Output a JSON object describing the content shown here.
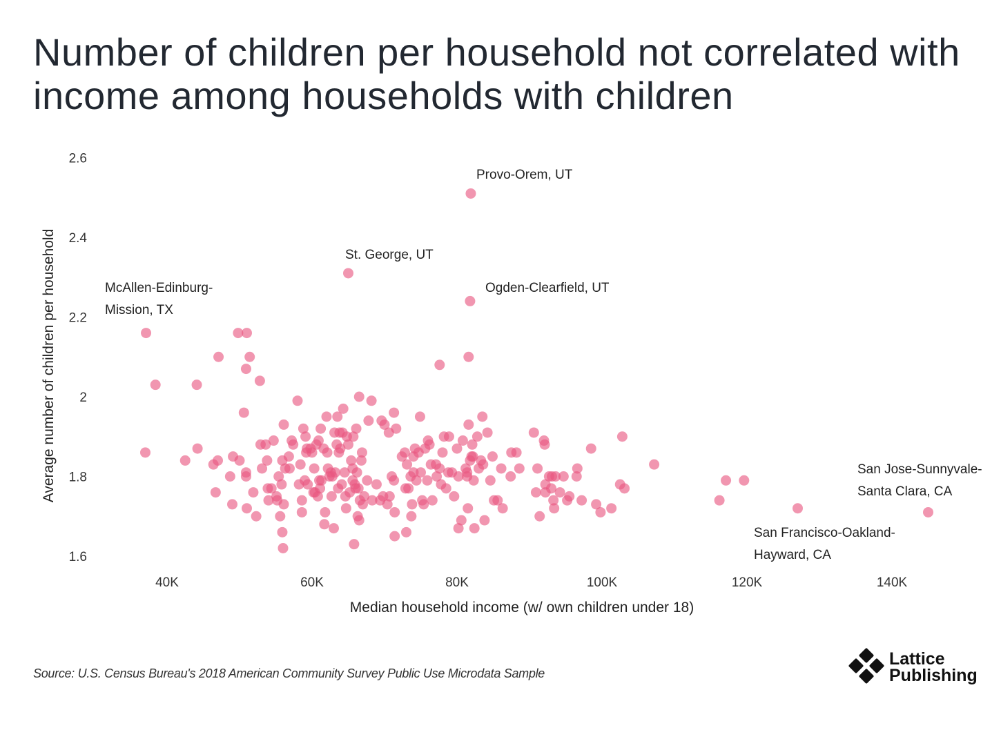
{
  "title": "Number of children per household not correlated with income among households with children",
  "source": "Source: U.S. Census Bureau's 2018 American Community Survey Public Use Microdata Sample",
  "logo": {
    "line1": "Lattice",
    "line2": "Publishing"
  },
  "colors": {
    "point": "#e8557f",
    "text": "#222831"
  },
  "chart_data": {
    "type": "scatter",
    "title": "Number of children per household not correlated with income among households with children",
    "xlabel": "Median household income (w/ own children under 18)",
    "ylabel": "Average number of children per household",
    "xlim": [
      31,
      154
    ],
    "ylim": [
      1.58,
      2.62
    ],
    "xticks": [
      40,
      60,
      80,
      100,
      120,
      140
    ],
    "xtick_labels": [
      "40K",
      "60K",
      "80K",
      "100K",
      "120K",
      "140K"
    ],
    "yticks": [
      1.6,
      1.8,
      2.0,
      2.2,
      2.4,
      2.6
    ],
    "ytick_labels": [
      "1.6",
      "1.8",
      "2",
      "2.2",
      "2.4",
      "2.6"
    ],
    "grid": false,
    "annotations": [
      {
        "label": [
          "Provo-Orem, UT"
        ],
        "x": 81.9,
        "y": 2.51
      },
      {
        "label": [
          "St. George, UT"
        ],
        "x": 65.0,
        "y": 2.31
      },
      {
        "label": [
          "Ogden-Clearfield, UT"
        ],
        "x": 81.8,
        "y": 2.24
      },
      {
        "label": [
          "McAllen-Edinburg-",
          "Mission, TX"
        ],
        "x": 37.1,
        "y": 2.16
      },
      {
        "label": [
          "San Jose-Sunnyvale-",
          "Santa Clara, CA"
        ],
        "x": 145.0,
        "y": 1.71
      },
      {
        "label": [
          "San Francisco-Oakland-",
          "Hayward, CA"
        ],
        "x": 127.0,
        "y": 1.72
      }
    ],
    "points": [
      [
        81.9,
        2.51
      ],
      [
        65.0,
        2.31
      ],
      [
        81.8,
        2.24
      ],
      [
        37.1,
        2.16
      ],
      [
        145.0,
        1.71
      ],
      [
        127.0,
        1.72
      ],
      [
        37.0,
        1.86
      ],
      [
        38.4,
        2.03
      ],
      [
        44.1,
        2.03
      ],
      [
        42.5,
        1.84
      ],
      [
        44.2,
        1.87
      ],
      [
        47.1,
        2.1
      ],
      [
        49.8,
        2.16
      ],
      [
        51.0,
        2.16
      ],
      [
        51.4,
        2.1
      ],
      [
        50.9,
        2.07
      ],
      [
        52.8,
        2.04
      ],
      [
        50.6,
        1.96
      ],
      [
        46.4,
        1.83
      ],
      [
        47.0,
        1.84
      ],
      [
        46.7,
        1.76
      ],
      [
        48.7,
        1.8
      ],
      [
        49.1,
        1.85
      ],
      [
        49.0,
        1.73
      ],
      [
        50.0,
        1.84
      ],
      [
        50.9,
        1.81
      ],
      [
        50.9,
        1.8
      ],
      [
        51.0,
        1.72
      ],
      [
        51.9,
        1.76
      ],
      [
        52.3,
        1.7
      ],
      [
        52.9,
        1.88
      ],
      [
        53.1,
        1.82
      ],
      [
        53.6,
        1.88
      ],
      [
        53.8,
        1.84
      ],
      [
        53.9,
        1.77
      ],
      [
        54.0,
        1.74
      ],
      [
        54.4,
        1.77
      ],
      [
        54.7,
        1.89
      ],
      [
        55.1,
        1.75
      ],
      [
        55.2,
        1.74
      ],
      [
        55.4,
        1.8
      ],
      [
        55.6,
        1.7
      ],
      [
        55.8,
        1.78
      ],
      [
        55.9,
        1.66
      ],
      [
        55.9,
        1.84
      ],
      [
        56.0,
        1.62
      ],
      [
        56.1,
        1.93
      ],
      [
        56.1,
        1.73
      ],
      [
        56.3,
        1.82
      ],
      [
        56.8,
        1.85
      ],
      [
        56.9,
        1.82
      ],
      [
        57.2,
        1.89
      ],
      [
        57.4,
        1.88
      ],
      [
        58.0,
        1.99
      ],
      [
        58.2,
        1.78
      ],
      [
        58.4,
        1.83
      ],
      [
        58.6,
        1.71
      ],
      [
        58.6,
        1.74
      ],
      [
        58.8,
        1.92
      ],
      [
        59.0,
        1.79
      ],
      [
        59.1,
        1.9
      ],
      [
        59.2,
        1.86
      ],
      [
        59.3,
        1.87
      ],
      [
        59.4,
        1.78
      ],
      [
        59.8,
        1.87
      ],
      [
        60.0,
        1.86
      ],
      [
        60.2,
        1.76
      ],
      [
        60.3,
        1.82
      ],
      [
        60.4,
        1.76
      ],
      [
        60.6,
        1.88
      ],
      [
        60.8,
        1.75
      ],
      [
        60.9,
        1.89
      ],
      [
        61.0,
        1.79
      ],
      [
        61.1,
        1.77
      ],
      [
        61.2,
        1.92
      ],
      [
        61.3,
        1.79
      ],
      [
        61.6,
        1.87
      ],
      [
        61.7,
        1.68
      ],
      [
        61.8,
        1.71
      ],
      [
        62.0,
        1.95
      ],
      [
        62.1,
        1.86
      ],
      [
        62.2,
        1.82
      ],
      [
        62.4,
        1.8
      ],
      [
        62.6,
        1.81
      ],
      [
        62.7,
        1.75
      ],
      [
        62.8,
        1.8
      ],
      [
        63.0,
        1.67
      ],
      [
        63.1,
        1.91
      ],
      [
        63.2,
        1.81
      ],
      [
        63.4,
        1.88
      ],
      [
        63.5,
        1.95
      ],
      [
        63.6,
        1.77
      ],
      [
        63.7,
        1.86
      ],
      [
        63.8,
        1.91
      ],
      [
        63.9,
        1.87
      ],
      [
        64.1,
        1.78
      ],
      [
        64.2,
        1.91
      ],
      [
        64.3,
        1.97
      ],
      [
        64.5,
        1.81
      ],
      [
        64.6,
        1.75
      ],
      [
        64.7,
        1.72
      ],
      [
        64.8,
        1.9
      ],
      [
        65.0,
        1.88
      ],
      [
        65.2,
        1.76
      ],
      [
        65.4,
        1.84
      ],
      [
        65.6,
        1.79
      ],
      [
        65.6,
        1.82
      ],
      [
        65.7,
        1.9
      ],
      [
        65.8,
        1.63
      ],
      [
        65.9,
        1.78
      ],
      [
        66.0,
        1.77
      ],
      [
        66.1,
        1.92
      ],
      [
        66.2,
        1.81
      ],
      [
        66.3,
        1.7
      ],
      [
        66.4,
        1.77
      ],
      [
        66.5,
        2.0
      ],
      [
        66.5,
        1.69
      ],
      [
        66.6,
        1.74
      ],
      [
        66.8,
        1.84
      ],
      [
        66.9,
        1.86
      ],
      [
        67.0,
        1.73
      ],
      [
        67.2,
        1.75
      ],
      [
        67.6,
        1.79
      ],
      [
        67.8,
        1.94
      ],
      [
        68.2,
        1.99
      ],
      [
        68.3,
        1.74
      ],
      [
        68.9,
        1.78
      ],
      [
        69.4,
        1.74
      ],
      [
        69.6,
        1.94
      ],
      [
        69.8,
        1.75
      ],
      [
        70.0,
        1.93
      ],
      [
        70.4,
        1.73
      ],
      [
        70.6,
        1.91
      ],
      [
        70.7,
        1.75
      ],
      [
        71.0,
        1.8
      ],
      [
        71.3,
        1.79
      ],
      [
        71.3,
        1.96
      ],
      [
        71.4,
        1.65
      ],
      [
        71.4,
        1.71
      ],
      [
        71.6,
        1.92
      ],
      [
        72.4,
        1.85
      ],
      [
        72.8,
        1.86
      ],
      [
        72.9,
        1.77
      ],
      [
        73.0,
        1.66
      ],
      [
        73.1,
        1.83
      ],
      [
        73.3,
        1.77
      ],
      [
        73.6,
        1.8
      ],
      [
        73.7,
        1.7
      ],
      [
        73.8,
        1.73
      ],
      [
        74.0,
        1.81
      ],
      [
        74.0,
        1.85
      ],
      [
        74.2,
        1.87
      ],
      [
        74.4,
        1.79
      ],
      [
        74.7,
        1.86
      ],
      [
        74.9,
        1.95
      ],
      [
        75.0,
        1.81
      ],
      [
        75.2,
        1.74
      ],
      [
        75.4,
        1.73
      ],
      [
        75.6,
        1.87
      ],
      [
        75.9,
        1.79
      ],
      [
        76.0,
        1.89
      ],
      [
        76.2,
        1.88
      ],
      [
        76.4,
        1.83
      ],
      [
        76.6,
        1.74
      ],
      [
        77.1,
        1.83
      ],
      [
        77.2,
        1.8
      ],
      [
        77.6,
        1.82
      ],
      [
        77.8,
        1.78
      ],
      [
        78.0,
        1.86
      ],
      [
        78.2,
        1.9
      ],
      [
        78.5,
        1.77
      ],
      [
        78.8,
        1.81
      ],
      [
        78.9,
        1.9
      ],
      [
        79.3,
        1.81
      ],
      [
        79.6,
        1.75
      ],
      [
        80.0,
        1.87
      ],
      [
        80.2,
        1.8
      ],
      [
        80.2,
        1.67
      ],
      [
        80.6,
        1.69
      ],
      [
        80.8,
        1.89
      ],
      [
        81.2,
        1.82
      ],
      [
        81.4,
        1.81
      ],
      [
        81.4,
        1.8
      ],
      [
        81.5,
        1.72
      ],
      [
        81.6,
        1.93
      ],
      [
        81.6,
        2.1
      ],
      [
        81.8,
        1.84
      ],
      [
        82.0,
        1.85
      ],
      [
        82.1,
        1.88
      ],
      [
        82.2,
        1.85
      ],
      [
        82.3,
        1.79
      ],
      [
        82.4,
        1.67
      ],
      [
        82.8,
        1.9
      ],
      [
        83.0,
        1.82
      ],
      [
        83.3,
        1.84
      ],
      [
        83.5,
        1.95
      ],
      [
        83.6,
        1.83
      ],
      [
        83.8,
        1.69
      ],
      [
        84.2,
        1.91
      ],
      [
        84.6,
        1.79
      ],
      [
        84.9,
        1.85
      ],
      [
        85.1,
        1.74
      ],
      [
        85.6,
        1.74
      ],
      [
        86.1,
        1.82
      ],
      [
        86.3,
        1.72
      ],
      [
        87.4,
        1.8
      ],
      [
        87.5,
        1.86
      ],
      [
        88.6,
        1.82
      ],
      [
        77.6,
        2.08
      ],
      [
        90.6,
        1.91
      ],
      [
        90.9,
        1.76
      ],
      [
        91.1,
        1.82
      ],
      [
        91.4,
        1.7
      ],
      [
        92.0,
        1.89
      ],
      [
        92.1,
        1.88
      ],
      [
        92.2,
        1.78
      ],
      [
        92.2,
        1.76
      ],
      [
        92.7,
        1.8
      ],
      [
        93.1,
        1.8
      ],
      [
        93.3,
        1.74
      ],
      [
        93.4,
        1.72
      ],
      [
        93.6,
        1.8
      ],
      [
        94.2,
        1.76
      ],
      [
        94.7,
        1.8
      ],
      [
        95.5,
        1.75
      ],
      [
        96.5,
        1.8
      ],
      [
        96.6,
        1.82
      ],
      [
        97.2,
        1.74
      ],
      [
        98.5,
        1.87
      ],
      [
        99.2,
        1.73
      ],
      [
        99.8,
        1.71
      ],
      [
        101.3,
        1.72
      ],
      [
        102.5,
        1.78
      ],
      [
        102.8,
        1.9
      ],
      [
        103.1,
        1.77
      ],
      [
        107.2,
        1.83
      ],
      [
        116.2,
        1.74
      ],
      [
        117.1,
        1.79
      ],
      [
        119.6,
        1.79
      ],
      [
        93.0,
        1.77
      ],
      [
        95.2,
        1.74
      ],
      [
        88.2,
        1.86
      ]
    ]
  }
}
